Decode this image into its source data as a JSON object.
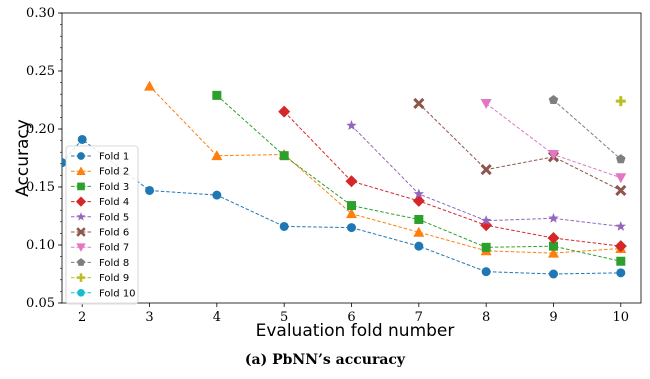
{
  "caption": "(a) PbNN’s accuracy",
  "chart_data": {
    "type": "line",
    "xlabel": "Evaluation fold number",
    "ylabel": "Accuracy",
    "xlim": [
      1.7,
      10.3
    ],
    "ylim": [
      0.05,
      0.3
    ],
    "xticks": [
      2,
      3,
      4,
      5,
      6,
      7,
      8,
      9,
      10
    ],
    "yticks": [
      0.05,
      0.1,
      0.15,
      0.2,
      0.25,
      0.3
    ],
    "ytick_labels": [
      "0.05",
      "0.10",
      "0.15",
      "0.20",
      "0.25",
      "0.30"
    ],
    "line_style": "dashed",
    "legend_position": "lower-left",
    "series": [
      {
        "name": "Fold 1",
        "color": "#1f77b4",
        "marker": "circle",
        "x": [
          1.7,
          2,
          3,
          4,
          5,
          6,
          7,
          8,
          9,
          10
        ],
        "y": [
          0.171,
          0.191,
          0.147,
          0.143,
          0.116,
          0.115,
          0.099,
          0.077,
          0.075,
          0.076
        ]
      },
      {
        "name": "Fold 2",
        "color": "#ff7f0e",
        "marker": "triangle-up",
        "x": [
          3,
          4,
          5,
          6,
          7,
          8,
          9,
          10
        ],
        "y": [
          0.237,
          0.177,
          0.178,
          0.127,
          0.111,
          0.095,
          0.093,
          0.097
        ]
      },
      {
        "name": "Fold 3",
        "color": "#2ca02c",
        "marker": "square",
        "x": [
          4,
          5,
          6,
          7,
          8,
          9,
          10
        ],
        "y": [
          0.229,
          0.177,
          0.134,
          0.122,
          0.098,
          0.099,
          0.086
        ]
      },
      {
        "name": "Fold 4",
        "color": "#d62728",
        "marker": "diamond",
        "x": [
          5,
          6,
          7,
          8,
          9,
          10
        ],
        "y": [
          0.215,
          0.155,
          0.138,
          0.117,
          0.106,
          0.099
        ]
      },
      {
        "name": "Fold 5",
        "color": "#9467bd",
        "marker": "star",
        "x": [
          6,
          7,
          8,
          9,
          10
        ],
        "y": [
          0.203,
          0.144,
          0.121,
          0.123,
          0.116
        ]
      },
      {
        "name": "Fold 6",
        "color": "#8c564b",
        "marker": "x",
        "x": [
          7,
          8,
          9,
          10
        ],
        "y": [
          0.222,
          0.165,
          0.176,
          0.147
        ]
      },
      {
        "name": "Fold 7",
        "color": "#e377c2",
        "marker": "triangle-down",
        "x": [
          8,
          9,
          10
        ],
        "y": [
          0.222,
          0.178,
          0.158
        ]
      },
      {
        "name": "Fold 8",
        "color": "#7f7f7f",
        "marker": "pentagon",
        "x": [
          9,
          10
        ],
        "y": [
          0.225,
          0.174
        ]
      },
      {
        "name": "Fold 9",
        "color": "#bcbd22",
        "marker": "plus",
        "x": [
          10
        ],
        "y": [
          0.224
        ]
      },
      {
        "name": "Fold 10",
        "color": "#17becf",
        "marker": "circle",
        "x": [],
        "y": []
      }
    ]
  }
}
